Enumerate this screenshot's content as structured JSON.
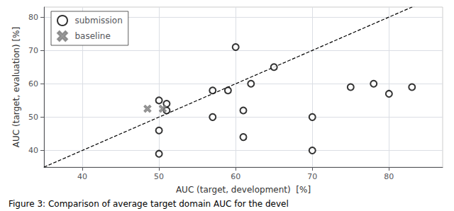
{
  "chart_data": {
    "type": "scatter",
    "xlabel": "AUC (target, development)  [%]",
    "ylabel": "AUC (target, evaluation) [%]",
    "caption": "Figure 3: Comparison of average target domain AUC for the devel",
    "series": [
      {
        "name": "submission",
        "color": "black",
        "marker": "hollow_circle",
        "x": [
          50,
          51,
          51,
          50,
          50,
          57,
          57,
          59,
          60,
          61,
          61,
          62,
          65,
          70,
          70,
          75,
          78,
          80,
          83
        ],
        "y": [
          55,
          54,
          52,
          46,
          39,
          50,
          58,
          58,
          71,
          52,
          44,
          60,
          65,
          50,
          40,
          59,
          60,
          57,
          59
        ]
      },
      {
        "name": "baseline",
        "color": "gray",
        "marker": "x",
        "x": [
          48.5,
          50.5
        ],
        "y": [
          52.5,
          52.5
        ]
      }
    ],
    "reference_line": {
      "x": [
        35,
        87
      ],
      "y": [
        35,
        87
      ],
      "color": "black",
      "line_style": "dashed"
    },
    "xlim": [
      35,
      87
    ],
    "ylim": [
      35,
      83
    ],
    "xticks": [
      40,
      50,
      60,
      70,
      80
    ],
    "yticks": [
      40,
      50,
      60,
      70,
      80
    ],
    "grid": true,
    "legend": "upper left"
  }
}
